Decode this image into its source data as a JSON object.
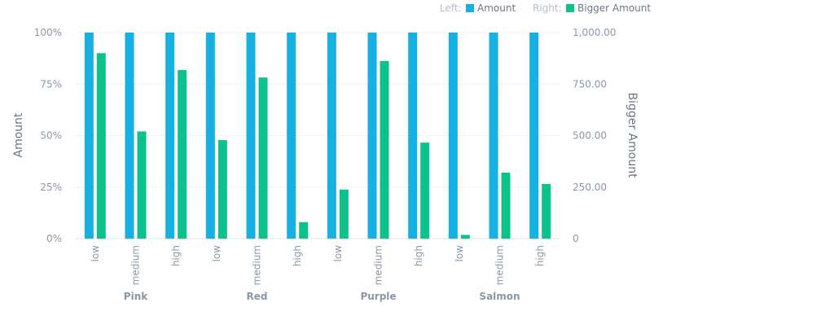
{
  "chart_data": {
    "type": "bar",
    "groups": [
      "Pink",
      "Red",
      "Purple",
      "Salmon"
    ],
    "categories": [
      "low",
      "medium",
      "high",
      "low",
      "medium",
      "high",
      "low",
      "medium",
      "high",
      "low",
      "medium",
      "high"
    ],
    "series": [
      {
        "name": "Amount",
        "axis": "left",
        "color": "#16b1e2",
        "values": [
          1,
          1,
          1,
          1,
          1,
          1,
          1,
          1,
          1,
          1,
          1,
          1
        ]
      },
      {
        "name": "Bigger Amount",
        "axis": "right",
        "color": "#0bc18c",
        "values": [
          900,
          520,
          818,
          478,
          782,
          80,
          238,
          862,
          466,
          18,
          320,
          265
        ]
      }
    ],
    "left_axis": {
      "label": "Amount",
      "range": [
        0,
        1
      ],
      "ticks": [
        0,
        0.25,
        0.5,
        0.75,
        1
      ],
      "tick_labels": [
        "0%",
        "25%",
        "50%",
        "75%",
        "100%"
      ]
    },
    "right_axis": {
      "label": "Bigger Amount",
      "range": [
        0,
        1000
      ],
      "ticks": [
        0,
        250,
        500,
        750,
        1000
      ],
      "tick_labels": [
        "0",
        "250.00",
        "500.00",
        "750.00",
        "1,000.00"
      ]
    },
    "legend": {
      "placement": "top-right",
      "left_prefix": "Left:",
      "right_prefix": "Right:"
    },
    "grid": true
  }
}
